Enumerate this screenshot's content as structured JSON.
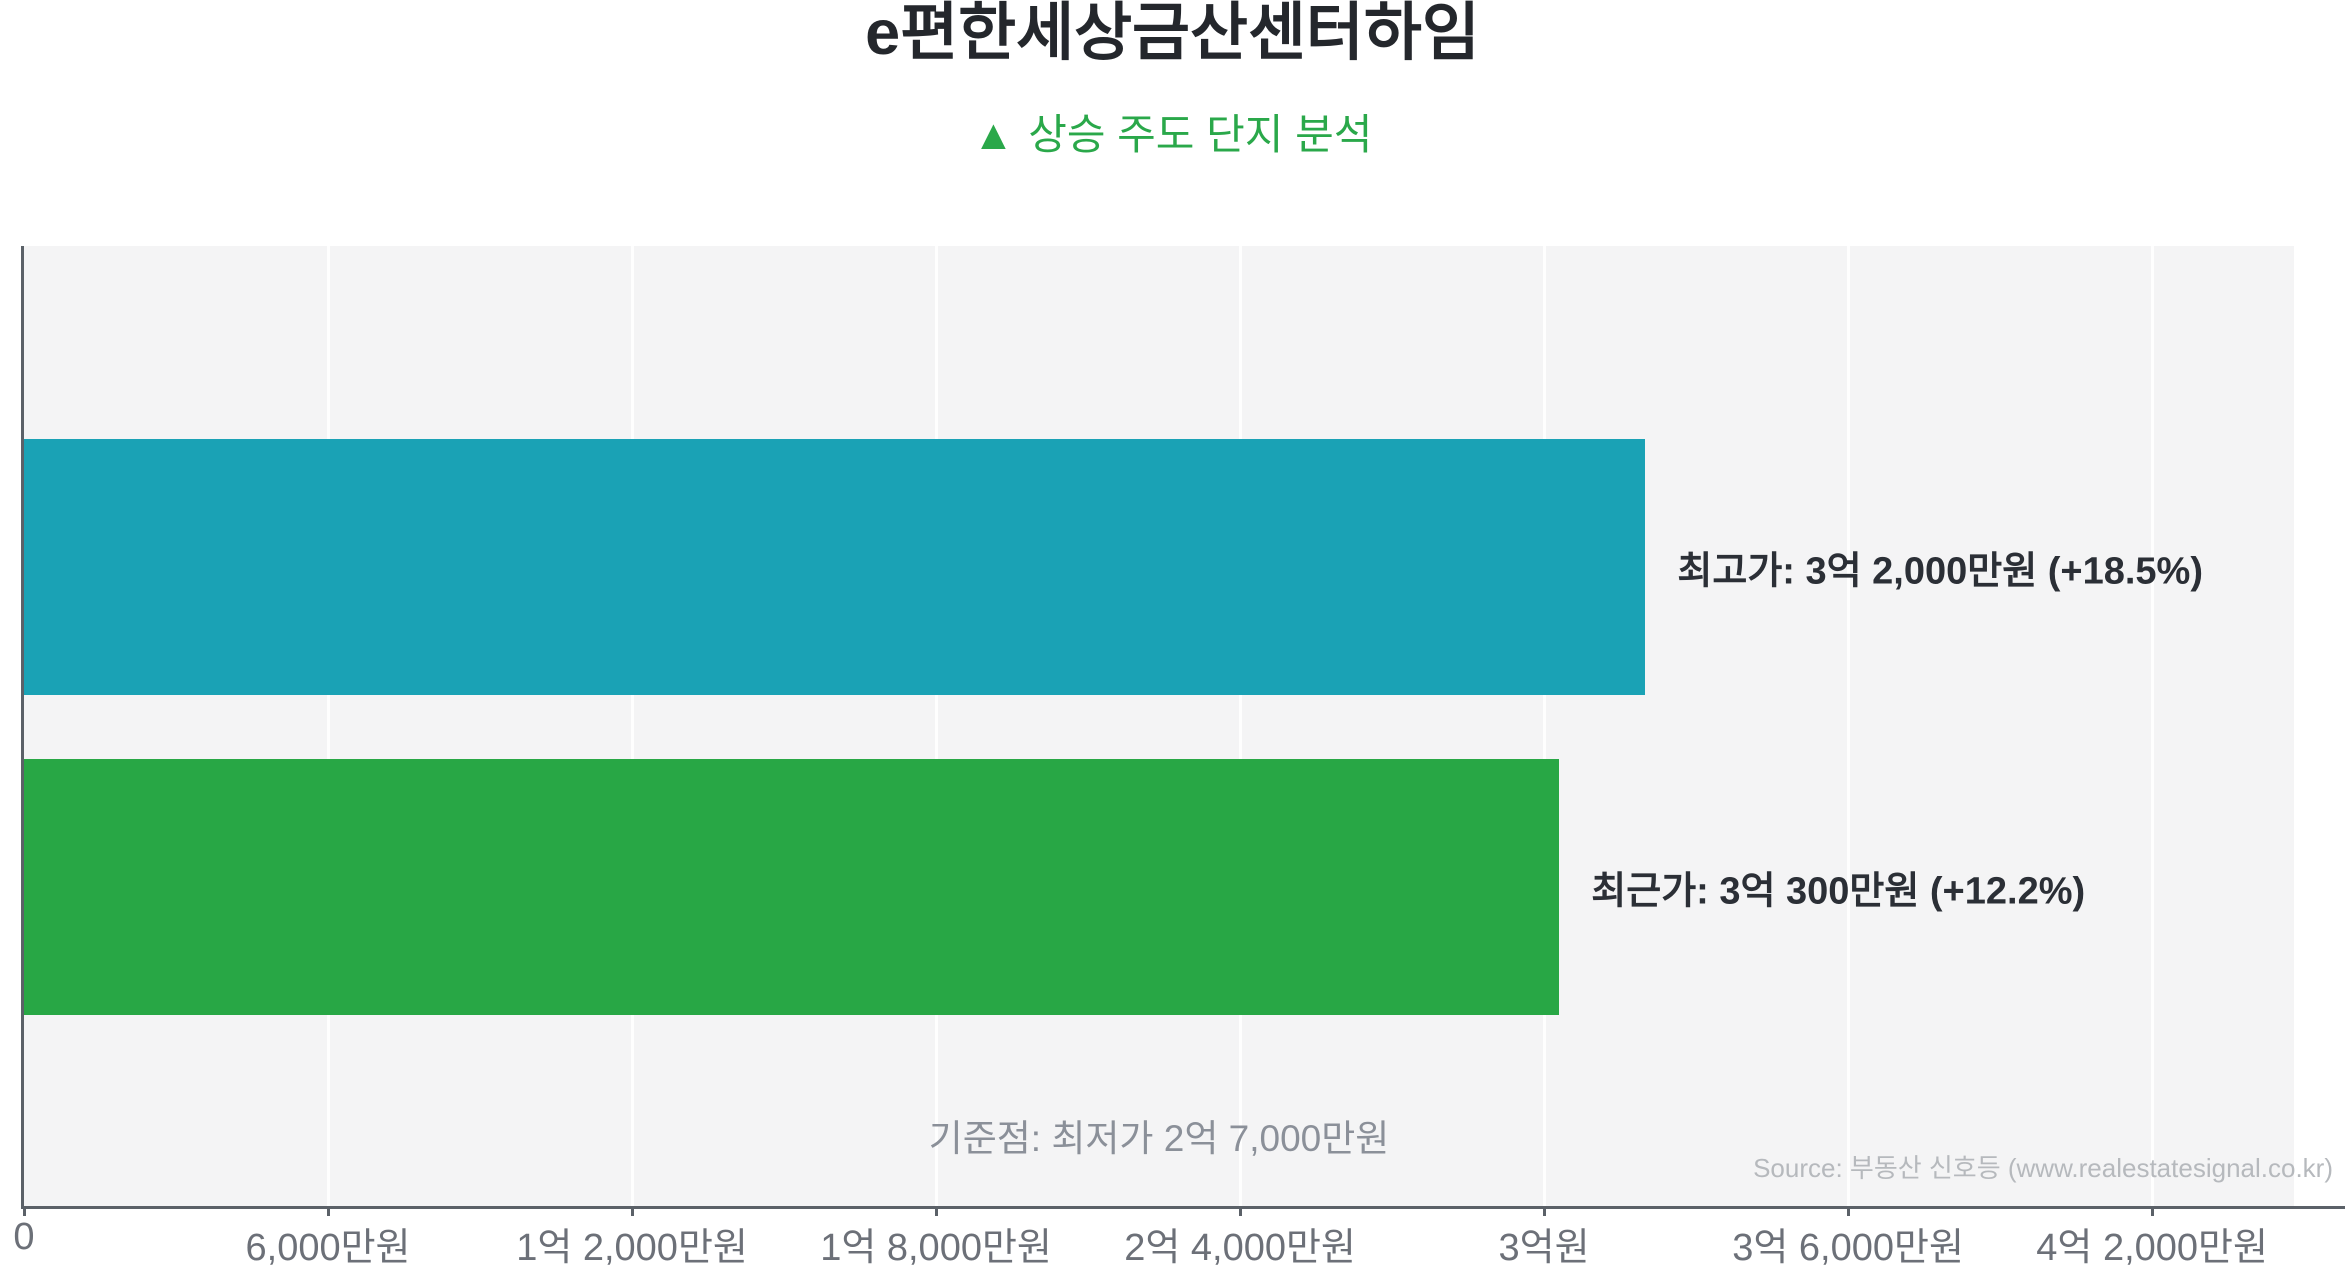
{
  "header": {
    "title": "e편한세상금산센터하임",
    "subtitle_icon": "▲",
    "subtitle": "상승 주도 단지 분석"
  },
  "chart_data": {
    "type": "bar",
    "orientation": "horizontal",
    "value_unit": "만원",
    "categories": [
      "최고가",
      "최근가"
    ],
    "series": [
      {
        "name": "최고가",
        "value": 32000,
        "display_value": "3억 2,000만원",
        "change": "+18.5%",
        "label": "최고가: 3억 2,000만원 (+18.5%)",
        "color": "#1aa2b5"
      },
      {
        "name": "최근가",
        "value": 30300,
        "display_value": "3억 300만원",
        "change": "+12.2%",
        "label": "최근가: 3억 300만원 (+12.2%)",
        "color": "#28a745"
      }
    ],
    "baseline": {
      "value": 27000,
      "label": "기준점: 최저가 2억 7,000만원"
    },
    "x_axis": {
      "min": 0,
      "max": 44800,
      "tick_values": [
        0,
        6000,
        12000,
        18000,
        24000,
        30000,
        36000,
        42000
      ],
      "tick_labels": [
        "0",
        "6,000만원",
        "1억 2,000만원",
        "1억 8,000만원",
        "2억 4,000만원",
        "3억원",
        "3억 6,000만원",
        "4억 2,000만원"
      ]
    },
    "grid": true,
    "legend": false,
    "plot_background": "#f4f4f5"
  },
  "source": "Source: 부동산 신호등 (www.realestatesignal.co.kr)",
  "colors": {
    "title": "#24272c",
    "subtitle_green": "#2aa84a",
    "bar_teal": "#1aa2b5",
    "bar_green": "#28a745",
    "bar_label": "#2b2f36",
    "tick_label": "#6c7078",
    "baseline_text": "#8b9099",
    "source_text": "#b6b9bd",
    "plot_bg": "#f4f4f5",
    "axis": "#5b6168"
  }
}
